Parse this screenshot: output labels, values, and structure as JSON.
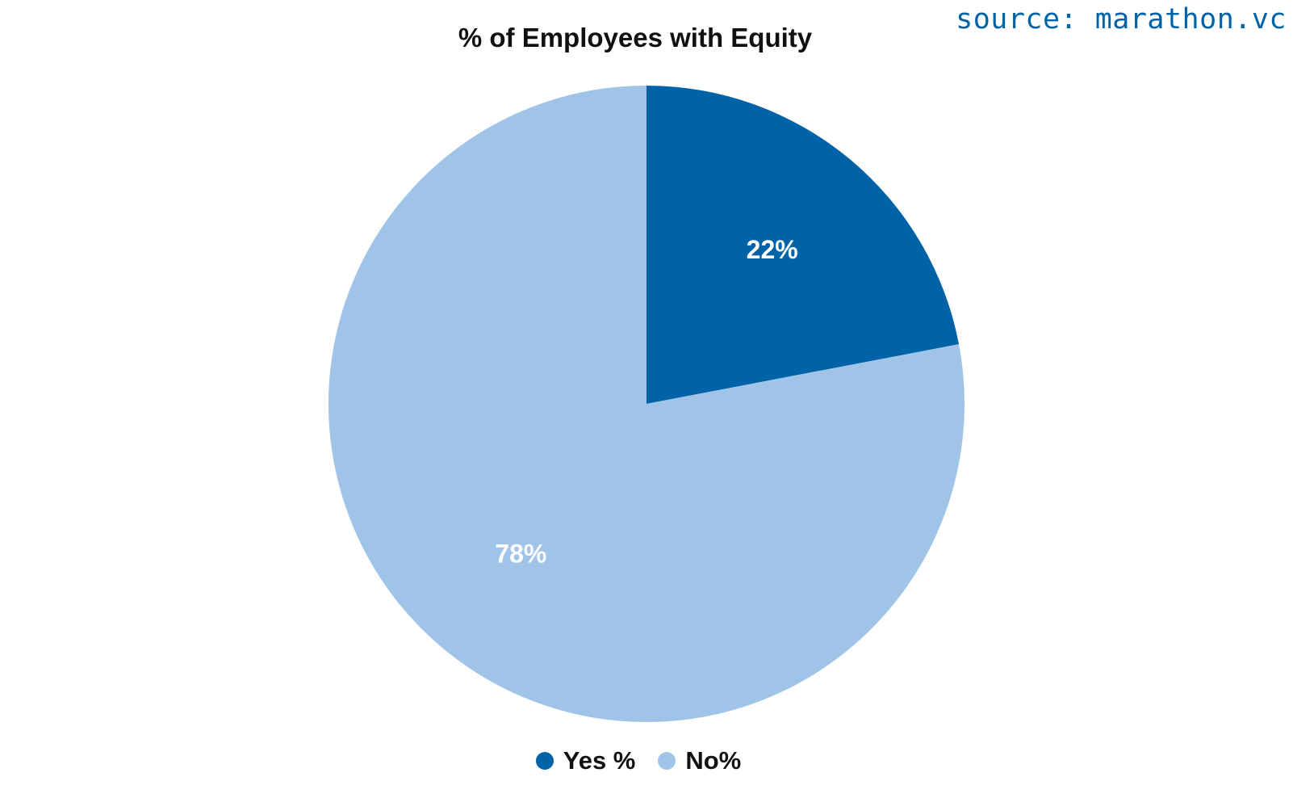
{
  "source_note": "source: marathon.vc",
  "chart_data": {
    "type": "pie",
    "title": "% of Employees with Equity",
    "slices": [
      {
        "name": "Yes %",
        "value": 22,
        "label": "22%",
        "color": "#0063a8"
      },
      {
        "name": "No%",
        "value": 78,
        "label": "78%",
        "color": "#a0c4e8"
      }
    ],
    "start_angle": "12 o'clock",
    "direction": "clockwise",
    "legend_position": "bottom"
  }
}
